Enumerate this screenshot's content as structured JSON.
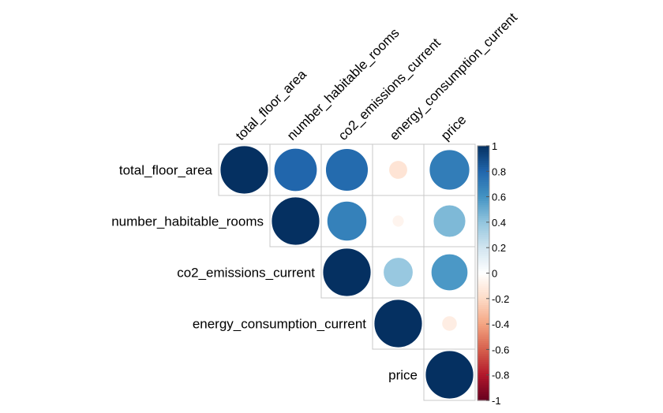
{
  "chart_data": {
    "type": "heatmap",
    "style": "correlation-plot-upper-circles",
    "variables": [
      "total_floor_area",
      "number_habitable_rooms",
      "co2_emissions_current",
      "energy_consumption_current",
      "price"
    ],
    "matrix": [
      [
        1.0,
        0.8,
        0.78,
        -0.15,
        0.7
      ],
      [
        0.8,
        1.0,
        0.68,
        -0.06,
        0.45
      ],
      [
        0.78,
        0.68,
        1.0,
        0.38,
        0.58
      ],
      [
        -0.15,
        -0.06,
        0.38,
        1.0,
        -0.1
      ],
      [
        0.7,
        0.45,
        0.58,
        -0.1,
        1.0
      ]
    ],
    "colorbar": {
      "ticks": [
        "-1",
        "-0.8",
        "-0.6",
        "-0.4",
        "-0.2",
        "0",
        "0.2",
        "0.4",
        "0.6",
        "0.8",
        "1"
      ],
      "range": [
        -1,
        1
      ],
      "low_color": "#67001F",
      "mid_color": "#FFFFFF",
      "high_color": "#053061"
    }
  }
}
